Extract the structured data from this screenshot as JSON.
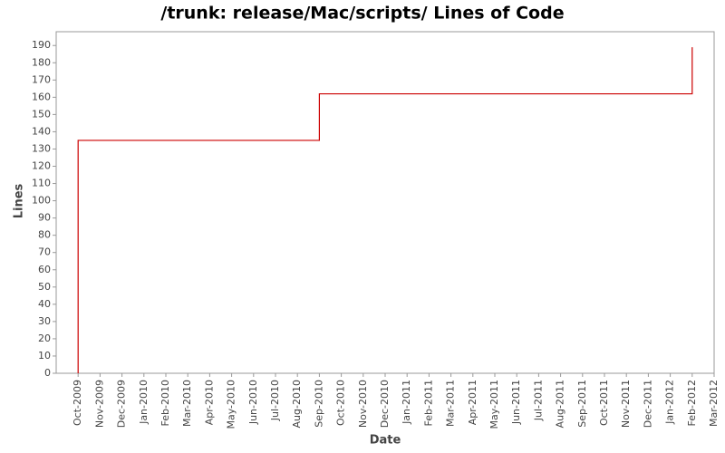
{
  "chart_data": {
    "type": "line",
    "title": "/trunk: release/Mac/scripts/ Lines of Code",
    "x_label": "Date",
    "y_label": "Lines",
    "x": [
      "2009-10",
      "2009-10",
      "2010-09",
      "2010-09",
      "2012-02",
      "2012-02"
    ],
    "series": [
      {
        "name": "Lines",
        "color": "#cc0000",
        "values": [
          0,
          135,
          135,
          162,
          162,
          189
        ]
      }
    ],
    "xlim": [
      "2009-09",
      "2012-03"
    ],
    "xticks": [
      {
        "value": "2009-10",
        "label": "Oct-2009"
      },
      {
        "value": "2009-11",
        "label": "Nov-2009"
      },
      {
        "value": "2009-12",
        "label": "Dec-2009"
      },
      {
        "value": "2010-01",
        "label": "Jan-2010"
      },
      {
        "value": "2010-02",
        "label": "Feb-2010"
      },
      {
        "value": "2010-03",
        "label": "Mar-2010"
      },
      {
        "value": "2010-04",
        "label": "Apr-2010"
      },
      {
        "value": "2010-05",
        "label": "May-2010"
      },
      {
        "value": "2010-06",
        "label": "Jun-2010"
      },
      {
        "value": "2010-07",
        "label": "Jul-2010"
      },
      {
        "value": "2010-08",
        "label": "Aug-2010"
      },
      {
        "value": "2010-09",
        "label": "Sep-2010"
      },
      {
        "value": "2010-10",
        "label": "Oct-2010"
      },
      {
        "value": "2010-11",
        "label": "Nov-2010"
      },
      {
        "value": "2010-12",
        "label": "Dec-2010"
      },
      {
        "value": "2011-01",
        "label": "Jan-2011"
      },
      {
        "value": "2011-02",
        "label": "Feb-2011"
      },
      {
        "value": "2011-03",
        "label": "Mar-2011"
      },
      {
        "value": "2011-04",
        "label": "Apr-2011"
      },
      {
        "value": "2011-05",
        "label": "May-2011"
      },
      {
        "value": "2011-06",
        "label": "Jun-2011"
      },
      {
        "value": "2011-07",
        "label": "Jul-2011"
      },
      {
        "value": "2011-08",
        "label": "Aug-2011"
      },
      {
        "value": "2011-09",
        "label": "Sep-2011"
      },
      {
        "value": "2011-10",
        "label": "Oct-2011"
      },
      {
        "value": "2011-11",
        "label": "Nov-2011"
      },
      {
        "value": "2011-12",
        "label": "Dec-2011"
      },
      {
        "value": "2012-01",
        "label": "Jan-2012"
      },
      {
        "value": "2012-02",
        "label": "Feb-2012"
      },
      {
        "value": "2012-03",
        "label": "Mar-2012"
      }
    ],
    "ylim": [
      0,
      198
    ],
    "yticks": [
      0,
      10,
      20,
      30,
      40,
      50,
      60,
      70,
      80,
      90,
      100,
      110,
      120,
      130,
      140,
      150,
      160,
      170,
      180,
      190
    ],
    "grid": false
  }
}
